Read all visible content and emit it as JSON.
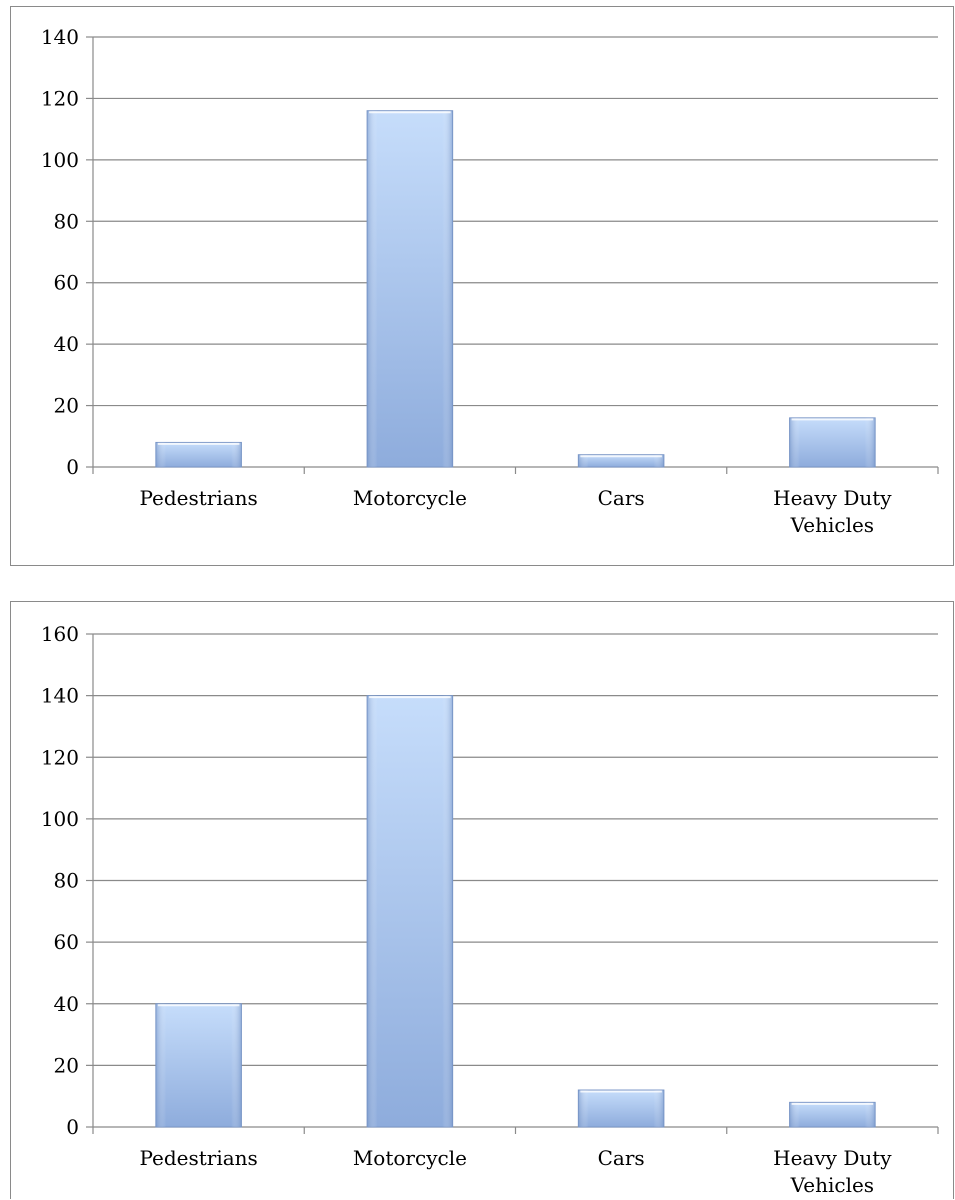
{
  "chart_data": [
    {
      "type": "bar",
      "categories": [
        [
          "Pedestrians"
        ],
        [
          "Motorcycle"
        ],
        [
          "Cars"
        ],
        [
          "Heavy Duty",
          "Vehicles"
        ]
      ],
      "values": [
        8,
        116,
        4,
        16
      ],
      "ylim": [
        0,
        140
      ],
      "yticks": [
        0,
        20,
        40,
        60,
        80,
        100,
        120,
        140
      ],
      "grid": true,
      "bar_color": "#a7c3ec"
    },
    {
      "type": "bar",
      "categories": [
        [
          "Pedestrians"
        ],
        [
          "Motorcycle"
        ],
        [
          "Cars"
        ],
        [
          "Heavy Duty",
          "Vehicles"
        ]
      ],
      "values": [
        40,
        140,
        12,
        8
      ],
      "ylim": [
        0,
        160
      ],
      "yticks": [
        0,
        20,
        40,
        60,
        80,
        100,
        120,
        140,
        160
      ],
      "grid": true,
      "bar_color": "#a7c3ec"
    }
  ]
}
